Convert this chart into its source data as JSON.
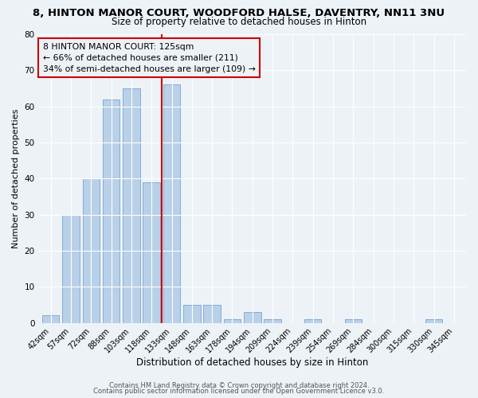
{
  "title": "8, HINTON MANOR COURT, WOODFORD HALSE, DAVENTRY, NN11 3NU",
  "subtitle": "Size of property relative to detached houses in Hinton",
  "xlabel": "Distribution of detached houses by size in Hinton",
  "ylabel": "Number of detached properties",
  "categories": [
    "42sqm",
    "57sqm",
    "72sqm",
    "88sqm",
    "103sqm",
    "118sqm",
    "133sqm",
    "148sqm",
    "163sqm",
    "178sqm",
    "194sqm",
    "209sqm",
    "224sqm",
    "239sqm",
    "254sqm",
    "269sqm",
    "284sqm",
    "300sqm",
    "315sqm",
    "330sqm",
    "345sqm"
  ],
  "values": [
    2,
    30,
    40,
    62,
    65,
    39,
    66,
    5,
    5,
    1,
    3,
    1,
    0,
    1,
    0,
    1,
    0,
    0,
    0,
    1,
    0
  ],
  "bar_color": "#b8d0e8",
  "bar_edge_color": "#6699cc",
  "bar_width": 0.85,
  "ylim": [
    0,
    80
  ],
  "yticks": [
    0,
    10,
    20,
    30,
    40,
    50,
    60,
    70,
    80
  ],
  "marker_index": 5.5,
  "marker_color": "#cc0000",
  "annotation_line1": "8 HINTON MANOR COURT: 125sqm",
  "annotation_line2": "← 66% of detached houses are smaller (211)",
  "annotation_line3": "34% of semi-detached houses are larger (109) →",
  "annotation_box_color": "#cc0000",
  "footer1": "Contains HM Land Registry data © Crown copyright and database right 2024.",
  "footer2": "Contains public sector information licensed under the Open Government Licence v3.0.",
  "bg_color": "#edf2f7",
  "grid_color": "#ffffff",
  "title_fontsize": 9.5,
  "subtitle_fontsize": 8.5,
  "axis_label_fontsize": 8,
  "tick_fontsize": 7,
  "annotation_fontsize": 7.8,
  "footer_fontsize": 6
}
